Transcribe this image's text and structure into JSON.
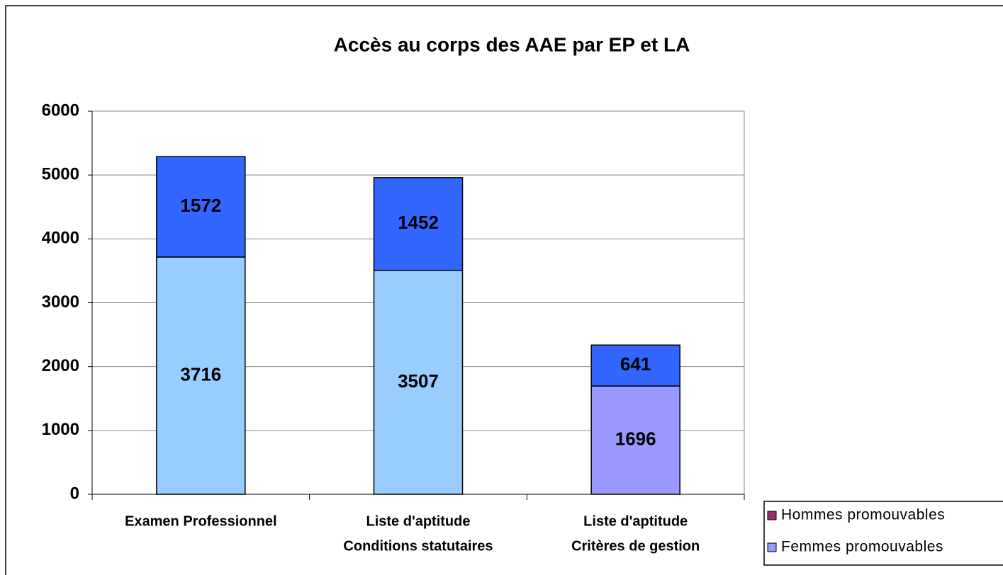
{
  "chart_data": {
    "type": "stacked_bar",
    "title": "Accès au corps des AAE par EP et LA",
    "categories": [
      [
        "Examen  Professionnel"
      ],
      [
        "Liste d'aptitude",
        "Conditions statutaires"
      ],
      [
        "Liste d'aptitude",
        "Critères de gestion"
      ]
    ],
    "series": [
      {
        "name": "Femmes promouvables",
        "color": "#9999ff",
        "bar_colors": [
          "#99ccff",
          "#99ccff",
          "#9999ff"
        ],
        "values": [
          3716,
          3507,
          1696
        ]
      },
      {
        "name": "Hommes promouvables",
        "color": "#993366",
        "bar_colors": [
          "#3366ff",
          "#3366ff",
          "#3366ff"
        ],
        "values": [
          1572,
          1452,
          641
        ]
      }
    ],
    "ylim": [
      0,
      6000
    ],
    "yticks": [
      0,
      1000,
      2000,
      3000,
      4000,
      5000,
      6000
    ],
    "grid": true
  }
}
